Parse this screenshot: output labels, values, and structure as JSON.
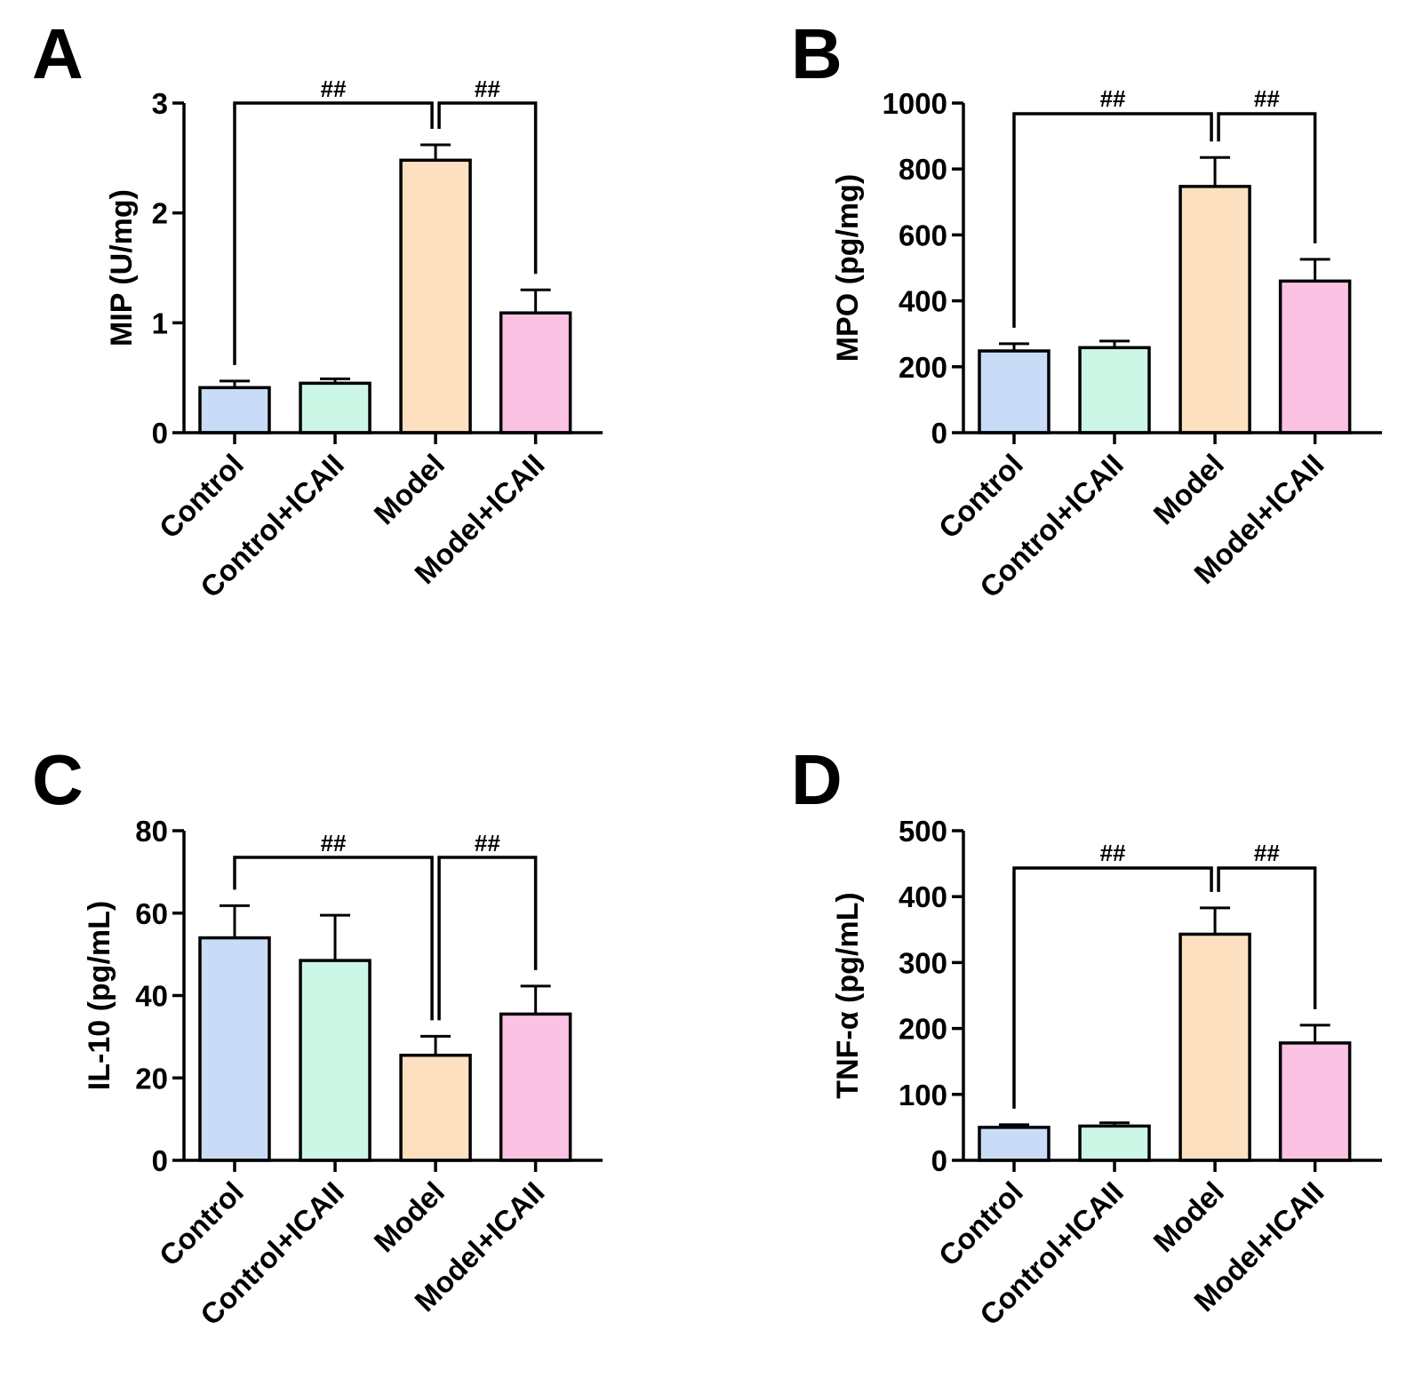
{
  "chart_data": [
    {
      "type": "bar",
      "panel_label": "A",
      "categories": [
        "Control",
        "Control+ICAII",
        "Model",
        "Model+ICAII"
      ],
      "values": [
        0.41,
        0.45,
        2.48,
        1.09
      ],
      "errors": [
        0.06,
        0.04,
        0.14,
        0.21
      ],
      "ylabel": "MIP (U/mg)",
      "ylim": [
        0,
        3
      ],
      "yticks": [
        "0",
        "1",
        "2",
        "3"
      ],
      "significance": [
        {
          "from": "Control",
          "to": "Model",
          "label": "##"
        },
        {
          "from": "Model",
          "to": "Model+ICAII",
          "label": "##"
        }
      ]
    },
    {
      "type": "bar",
      "panel_label": "B",
      "categories": [
        "Control",
        "Control+ICAII",
        "Model",
        "Model+ICAII"
      ],
      "values": [
        248,
        258,
        747,
        460
      ],
      "errors": [
        22,
        20,
        88,
        66
      ],
      "ylabel": "MPO (pg/mg)",
      "ylim": [
        0,
        1000
      ],
      "yticks": [
        "0",
        "200",
        "400",
        "600",
        "800",
        "1000"
      ],
      "significance": [
        {
          "from": "Control",
          "to": "Model",
          "label": "##"
        },
        {
          "from": "Model",
          "to": "Model+ICAII",
          "label": "##"
        }
      ]
    },
    {
      "type": "bar",
      "panel_label": "C",
      "categories": [
        "Control",
        "Control+ICAII",
        "Model",
        "Model+ICAII"
      ],
      "values": [
        54,
        48.5,
        25.5,
        35.5
      ],
      "errors": [
        7.8,
        11,
        4.6,
        6.8
      ],
      "ylabel": "IL-10 (pg/mL)",
      "ylim": [
        0,
        80
      ],
      "yticks": [
        "0",
        "20",
        "40",
        "60",
        "80"
      ],
      "significance": [
        {
          "from": "Control",
          "to": "Model",
          "label": "##"
        },
        {
          "from": "Model",
          "to": "Model+ICAII",
          "label": "##"
        }
      ]
    },
    {
      "type": "bar",
      "panel_label": "D",
      "categories": [
        "Control",
        "Control+ICAII",
        "Model",
        "Model+ICAII"
      ],
      "values": [
        50,
        52,
        343,
        178
      ],
      "errors": [
        4,
        5,
        40,
        27
      ],
      "ylabel": "TNF-α (pg/mL)",
      "ylim": [
        0,
        500
      ],
      "yticks": [
        "0",
        "100",
        "200",
        "300",
        "400",
        "500"
      ],
      "significance": [
        {
          "from": "Control",
          "to": "Model",
          "label": "##"
        },
        {
          "from": "Model",
          "to": "Model+ICAII",
          "label": "##"
        }
      ]
    }
  ],
  "colors": {
    "bars": [
      "#c9dcf7",
      "#ccf6e6",
      "#fde0c0",
      "#fcc2e3"
    ],
    "stroke": "#000000"
  }
}
